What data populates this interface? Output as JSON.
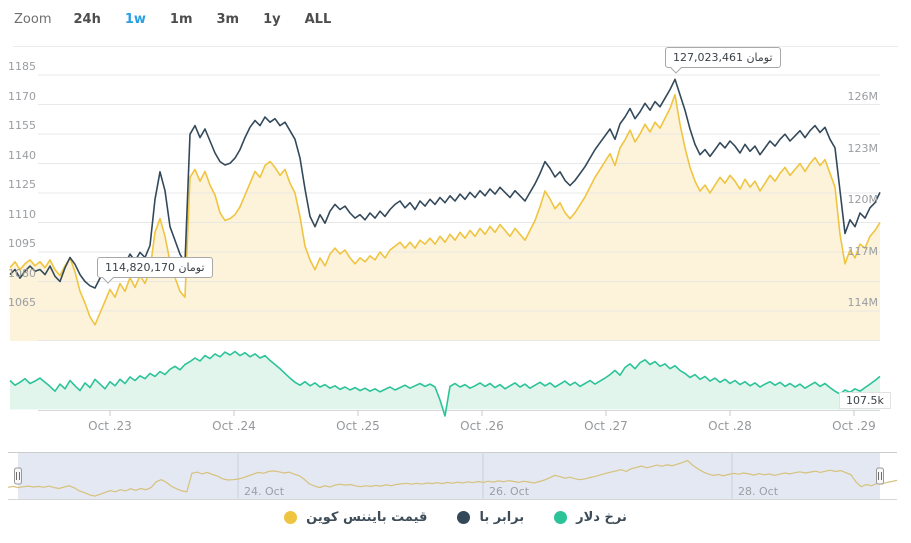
{
  "toolbar": {
    "zoom_label": "Zoom",
    "active": "1w",
    "buttons": [
      {
        "label": "24h"
      },
      {
        "label": "1w"
      },
      {
        "label": "1m"
      },
      {
        "label": "3m"
      },
      {
        "label": "1y"
      },
      {
        "label": "ALL"
      }
    ]
  },
  "chart_data": {
    "type": "line",
    "title": "",
    "x_axis": {
      "tick_labels": [
        "Oct .23",
        "Oct .24",
        "Oct .25",
        "Oct .26",
        "Oct .27",
        "Oct .28",
        "Oct .29"
      ]
    },
    "left_axis": {
      "ticks": [
        1185,
        1170,
        1155,
        1140,
        1125,
        1110,
        1095,
        1080,
        1065
      ],
      "tick_labels": [
        "1185",
        "1170",
        "1155",
        "1140",
        "1125",
        "1110",
        "1095",
        "1080",
        "1065"
      ],
      "ylim": [
        1050,
        1200
      ]
    },
    "right_axis": {
      "ticks": [
        126,
        123,
        120,
        117,
        114
      ],
      "tick_labels": [
        "126M",
        "123M",
        "120M",
        "117M",
        "114M"
      ],
      "ylim": [
        112,
        128.6
      ]
    },
    "dollar_axis": {
      "last_label": "107.5k"
    },
    "annotations": {
      "max": {
        "text": "تومان 127,023,461",
        "value": 127023461
      },
      "min": {
        "text": "تومان 114,820,170",
        "value": 114820170
      }
    },
    "navigator": {
      "tick_labels": [
        "24. Oct",
        "26. Oct",
        "28. Oct"
      ]
    },
    "legend_position": "bottom-center",
    "grid": true,
    "series": [
      {
        "id": "binance-price",
        "name": "قیمت بایننس کوین",
        "color": "#efc440",
        "fill": "#fcf3da",
        "axis": "left",
        "values": [
          1087,
          1090,
          1086,
          1089,
          1091,
          1088,
          1090,
          1087,
          1091,
          1086,
          1083,
          1088,
          1092,
          1085,
          1075,
          1069,
          1062,
          1058,
          1064,
          1070,
          1076,
          1072,
          1079,
          1075,
          1082,
          1077,
          1083,
          1079,
          1086,
          1105,
          1112,
          1103,
          1090,
          1082,
          1075,
          1072,
          1133,
          1137,
          1131,
          1136,
          1129,
          1124,
          1115,
          1111,
          1112,
          1114,
          1118,
          1124,
          1130,
          1136,
          1133,
          1139,
          1141,
          1138,
          1134,
          1137,
          1130,
          1125,
          1113,
          1098,
          1091,
          1086,
          1092,
          1088,
          1094,
          1097,
          1094,
          1096,
          1092,
          1089,
          1092,
          1090,
          1093,
          1091,
          1095,
          1092,
          1096,
          1098,
          1100,
          1097,
          1100,
          1097,
          1101,
          1099,
          1102,
          1099,
          1103,
          1100,
          1104,
          1101,
          1105,
          1102,
          1106,
          1103,
          1107,
          1104,
          1108,
          1105,
          1109,
          1106,
          1103,
          1107,
          1104,
          1101,
          1106,
          1111,
          1118,
          1126,
          1122,
          1117,
          1120,
          1115,
          1112,
          1115,
          1119,
          1123,
          1128,
          1133,
          1137,
          1141,
          1145,
          1139,
          1148,
          1152,
          1157,
          1151,
          1155,
          1160,
          1156,
          1161,
          1158,
          1163,
          1168,
          1175,
          1160,
          1148,
          1138,
          1131,
          1126,
          1129,
          1125,
          1129,
          1133,
          1130,
          1134,
          1131,
          1127,
          1132,
          1128,
          1131,
          1126,
          1130,
          1134,
          1131,
          1135,
          1138,
          1134,
          1137,
          1140,
          1136,
          1140,
          1143,
          1139,
          1142,
          1135,
          1128,
          1104,
          1089,
          1096,
          1092,
          1099,
          1097,
          1103,
          1106,
          1110
        ]
      },
      {
        "id": "equal-toman",
        "name": "برابر با",
        "color": "#33495a",
        "axis": "right",
        "values": [
          115.6,
          115.9,
          115.4,
          115.8,
          116.1,
          115.8,
          115.9,
          115.6,
          116.1,
          115.5,
          115.2,
          116.0,
          116.6,
          116.2,
          115.6,
          115.2,
          114.95,
          114.82,
          115.4,
          115.9,
          116.3,
          116.0,
          116.5,
          116.2,
          116.8,
          116.4,
          116.9,
          116.6,
          117.3,
          120.0,
          121.6,
          120.5,
          118.4,
          117.6,
          116.8,
          116.3,
          123.8,
          124.3,
          123.6,
          124.1,
          123.4,
          122.7,
          122.2,
          122.0,
          122.1,
          122.4,
          122.9,
          123.6,
          124.2,
          124.6,
          124.3,
          124.8,
          124.5,
          124.7,
          124.3,
          124.5,
          124.0,
          123.5,
          122.4,
          120.6,
          119.0,
          118.4,
          119.1,
          118.6,
          119.3,
          119.7,
          119.4,
          119.6,
          119.2,
          118.9,
          119.1,
          118.8,
          119.2,
          118.9,
          119.3,
          119.0,
          119.4,
          119.7,
          119.9,
          119.5,
          119.8,
          119.4,
          119.9,
          119.6,
          120.0,
          119.7,
          120.1,
          119.8,
          120.2,
          119.9,
          120.3,
          120.0,
          120.4,
          120.1,
          120.5,
          120.2,
          120.6,
          120.3,
          120.7,
          120.4,
          120.1,
          120.5,
          120.2,
          119.9,
          120.4,
          120.9,
          121.5,
          122.2,
          121.8,
          121.3,
          121.6,
          121.1,
          120.8,
          121.1,
          121.5,
          121.9,
          122.4,
          122.9,
          123.3,
          123.7,
          124.1,
          123.5,
          124.4,
          124.8,
          125.3,
          124.7,
          125.1,
          125.6,
          125.2,
          125.7,
          125.4,
          125.9,
          126.4,
          127.0,
          126.1,
          125.2,
          124.1,
          123.2,
          122.6,
          122.9,
          122.5,
          122.9,
          123.3,
          123.0,
          123.4,
          123.1,
          122.7,
          123.2,
          122.8,
          123.1,
          122.6,
          123.0,
          123.4,
          123.1,
          123.5,
          123.8,
          123.4,
          123.7,
          124.0,
          123.6,
          124.0,
          124.3,
          123.9,
          124.2,
          123.5,
          123.0,
          120.5,
          118.0,
          118.8,
          118.4,
          119.2,
          118.9,
          119.5,
          119.8,
          120.4
        ]
      },
      {
        "id": "dollar-rate",
        "name": "نرخ دلار",
        "color": "#2cc398",
        "fill": "#e2f5ed",
        "axis": "dollar",
        "values": [
          107.88,
          107.8,
          107.85,
          107.91,
          107.83,
          107.87,
          107.92,
          107.85,
          107.78,
          107.7,
          107.82,
          107.74,
          107.88,
          107.79,
          107.71,
          107.84,
          107.76,
          107.9,
          107.82,
          107.74,
          107.86,
          107.79,
          107.9,
          107.83,
          107.94,
          107.88,
          107.96,
          107.91,
          108.0,
          107.95,
          108.03,
          107.98,
          108.07,
          108.12,
          108.06,
          108.15,
          108.2,
          108.26,
          108.21,
          108.3,
          108.25,
          108.33,
          108.28,
          108.36,
          108.31,
          108.37,
          108.3,
          108.35,
          108.28,
          108.33,
          108.26,
          108.3,
          108.22,
          108.15,
          108.08,
          108.0,
          107.92,
          107.85,
          107.8,
          107.86,
          107.79,
          107.84,
          107.77,
          107.81,
          107.75,
          107.79,
          107.73,
          107.77,
          107.72,
          107.76,
          107.71,
          107.75,
          107.7,
          107.74,
          107.69,
          107.73,
          107.77,
          107.72,
          107.76,
          107.8,
          107.75,
          107.79,
          107.83,
          107.78,
          107.82,
          107.77,
          107.55,
          107.28,
          107.78,
          107.83,
          107.77,
          107.81,
          107.75,
          107.79,
          107.84,
          107.78,
          107.83,
          107.76,
          107.81,
          107.74,
          107.79,
          107.84,
          107.77,
          107.82,
          107.75,
          107.8,
          107.85,
          107.79,
          107.84,
          107.77,
          107.82,
          107.87,
          107.8,
          107.85,
          107.78,
          107.83,
          107.88,
          107.82,
          107.87,
          107.92,
          107.98,
          108.05,
          107.97,
          108.1,
          108.16,
          108.08,
          108.18,
          108.23,
          108.15,
          108.2,
          108.12,
          108.16,
          108.08,
          108.13,
          108.05,
          108.0,
          107.93,
          107.98,
          107.9,
          107.95,
          107.87,
          107.92,
          107.85,
          107.9,
          107.83,
          107.88,
          107.81,
          107.86,
          107.79,
          107.84,
          107.77,
          107.82,
          107.86,
          107.8,
          107.85,
          107.78,
          107.83,
          107.77,
          107.82,
          107.75,
          107.8,
          107.85,
          107.78,
          107.83,
          107.76,
          107.7,
          107.65,
          107.72,
          107.68,
          107.74,
          107.7,
          107.76,
          107.82,
          107.88,
          107.95
        ]
      }
    ]
  },
  "legend": {
    "items": [
      {
        "label": "قیمت بایننس کوین",
        "color": "#efc440"
      },
      {
        "label": "برابر با",
        "color": "#33495a"
      },
      {
        "label": "نرخ دلار",
        "color": "#2cc398"
      }
    ]
  }
}
